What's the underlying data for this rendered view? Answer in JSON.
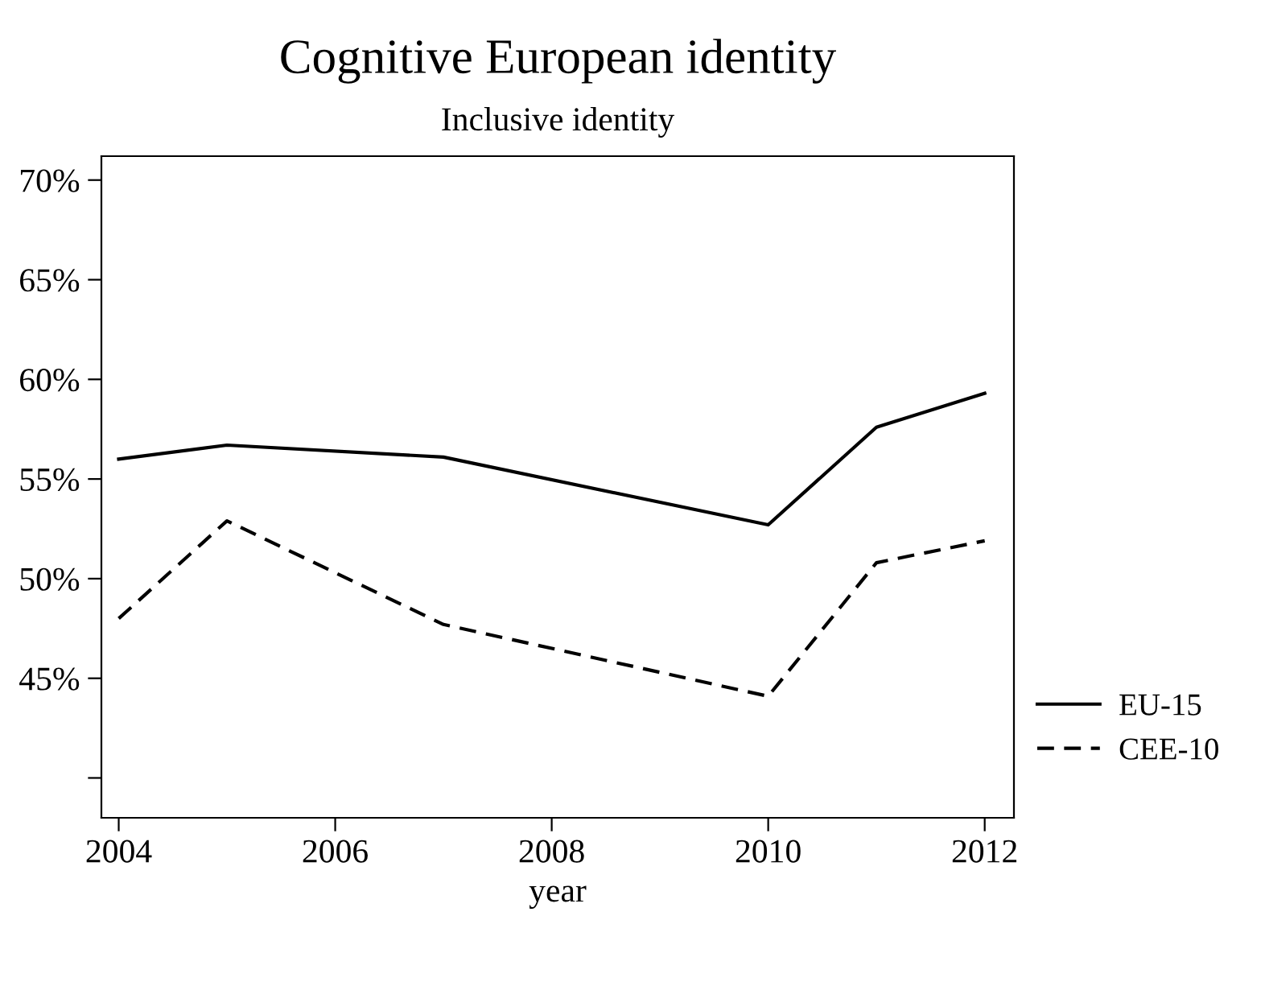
{
  "chart_data": {
    "type": "line",
    "title": "Cognitive European identity",
    "subtitle": "Inclusive identity",
    "xlabel": "year",
    "x": [
      2004,
      2005,
      2007,
      2010,
      2011,
      2012
    ],
    "series": [
      {
        "name": "EU-15",
        "color": "#000000",
        "line_style": "solid",
        "values": [
          56.0,
          56.7,
          56.1,
          52.7,
          57.6,
          59.3
        ]
      },
      {
        "name": "CEE-10",
        "color": "#000000",
        "line_style": "dashed",
        "values": [
          48.0,
          52.9,
          47.7,
          44.1,
          50.8,
          51.9
        ]
      }
    ],
    "xlim": [
      2003.84,
      2012.27
    ],
    "xticks": [
      2004,
      2006,
      2008,
      2010,
      2012
    ],
    "ylim": [
      38.0,
      71.2
    ],
    "yticks": [
      {
        "value": 40,
        "label": null
      },
      {
        "value": 45,
        "label": "45%"
      },
      {
        "value": 50,
        "label": "50%"
      },
      {
        "value": 55,
        "label": "55%"
      },
      {
        "value": 60,
        "label": "60%"
      },
      {
        "value": 65,
        "label": "65%"
      },
      {
        "value": 70,
        "label": "70%"
      }
    ],
    "legend": "bottom right",
    "grid": false,
    "marker": "none"
  }
}
